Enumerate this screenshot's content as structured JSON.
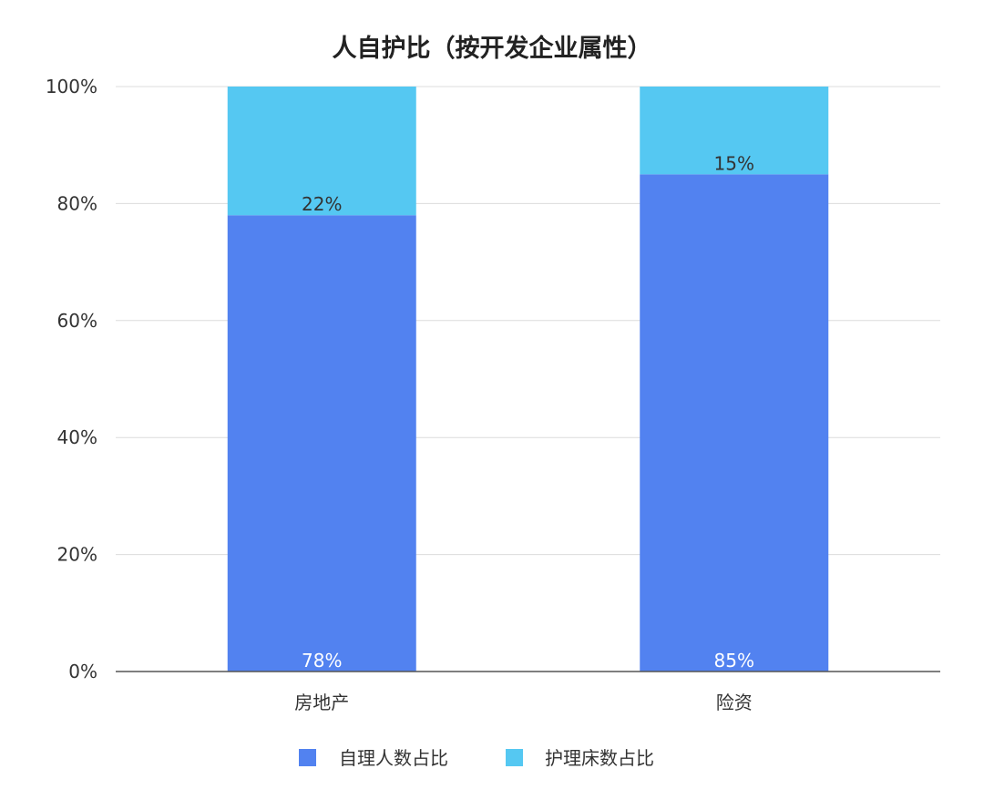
{
  "chart_data": {
    "type": "bar",
    "stacked": true,
    "title": "人自护比（按开发企业属性）",
    "categories": [
      "房地产",
      "险资"
    ],
    "series": [
      {
        "name": "自理人数占比",
        "values": [
          78,
          85
        ],
        "labels": [
          "78%",
          "85%"
        ],
        "color": "#5282f0"
      },
      {
        "name": "护理床数占比",
        "values": [
          22,
          15
        ],
        "labels": [
          "22%",
          "15%"
        ],
        "color": "#55c8f2"
      }
    ],
    "ylim": [
      0,
      100
    ],
    "yticks": [
      0,
      20,
      40,
      60,
      80,
      100
    ],
    "ytick_labels": [
      "0%",
      "20%",
      "40%",
      "60%",
      "80%",
      "100%"
    ],
    "grid": true,
    "legend": "bottom"
  }
}
